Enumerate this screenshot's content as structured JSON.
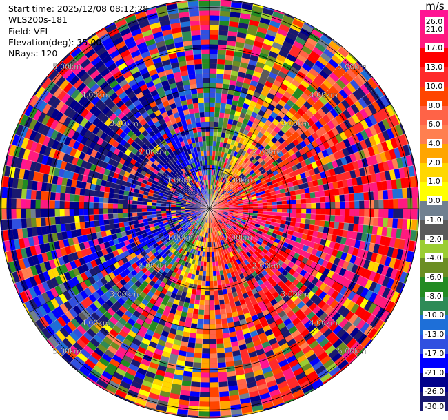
{
  "header": {
    "start_time": "Start time: 2025/12/08 08:12:28",
    "instrument": "WLS200s-181",
    "field": "Field: VEL",
    "elevation": "Elevation(deg): 35.00",
    "nrays": "NRays: 120"
  },
  "chart_data": {
    "type": "ppi",
    "title": "Start time: 2025/12/08 08:12:28",
    "field": "VEL",
    "units": "m/s",
    "elevation_deg": 35.0,
    "n_rays": 120,
    "max_range_km": 5.2,
    "range_rings_km": [
      1,
      2,
      3,
      4,
      5
    ],
    "ring_labels": [
      "1.00km",
      "2.00km",
      "3.00km",
      "4.00km",
      "5.00km"
    ],
    "colorbar": {
      "label": "m/s",
      "ticks": [
        "26.0",
        "21.0",
        "17.0",
        "13.0",
        "10.0",
        "8.0",
        "6.0",
        "4.0",
        "2.0",
        "1.0",
        "0.0",
        "-1.0",
        "-2.0",
        "-4.0",
        "-6.0",
        "-8.0",
        "-10.0",
        "-13.0",
        "-17.0",
        "-21.0",
        "-26.0",
        "-30.0"
      ],
      "colors": [
        "#ff1493",
        "#ff1a80",
        "#ff0000",
        "#ff2a2a",
        "#ff4500",
        "#ff6347",
        "#ff7f50",
        "#ffa500",
        "#ffd700",
        "#ffff00",
        "#708090",
        "#5a5a5a",
        "#9acd32",
        "#6b8e23",
        "#228b22",
        "#2e8b57",
        "#1e6fd8",
        "#3050e0",
        "#0000ff",
        "#00008b",
        "#191970"
      ]
    },
    "pattern": "positive (receding) velocities dominate the east/southeast half, negative (approaching) velocities dominate the west/northwest half, with heavy speckle noise at far ranges"
  }
}
